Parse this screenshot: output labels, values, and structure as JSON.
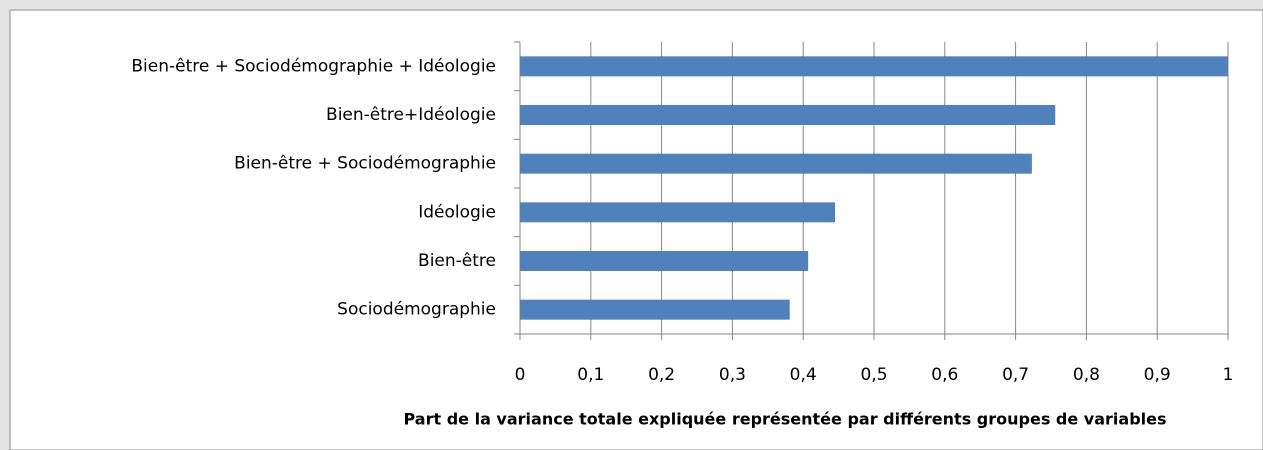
{
  "chart_data": {
    "type": "barh",
    "categories": [
      "Bien-être + Sociodémographie + Idéologie",
      "Bien-être+Idéologie",
      "Bien-être + Sociodémographie",
      "Idéologie",
      "Bien-être",
      "Sociodémographie"
    ],
    "values": [
      1.0,
      0.756,
      0.723,
      0.445,
      0.407,
      0.381
    ],
    "color": "#4f81bd",
    "xlabel": "Part de la variance  totale expliquée représentée par différents groupes de variables",
    "xlim": [
      0,
      1
    ],
    "xticks": [
      0,
      {
        "value": 0.1,
        "label": "0,1"
      },
      {
        "value": 0.2,
        "label": "0,2"
      },
      {
        "value": 0.3,
        "label": "0,3"
      },
      {
        "value": 0.4,
        "label": "0,4"
      },
      {
        "value": 0.5,
        "label": "0,5"
      },
      {
        "value": 0.6,
        "label": "0,6"
      },
      {
        "value": 0.7,
        "label": "0,7"
      },
      {
        "value": 0.8,
        "label": "0,8"
      },
      {
        "value": 0.9,
        "label": "0,9"
      },
      1
    ],
    "grid": true
  }
}
